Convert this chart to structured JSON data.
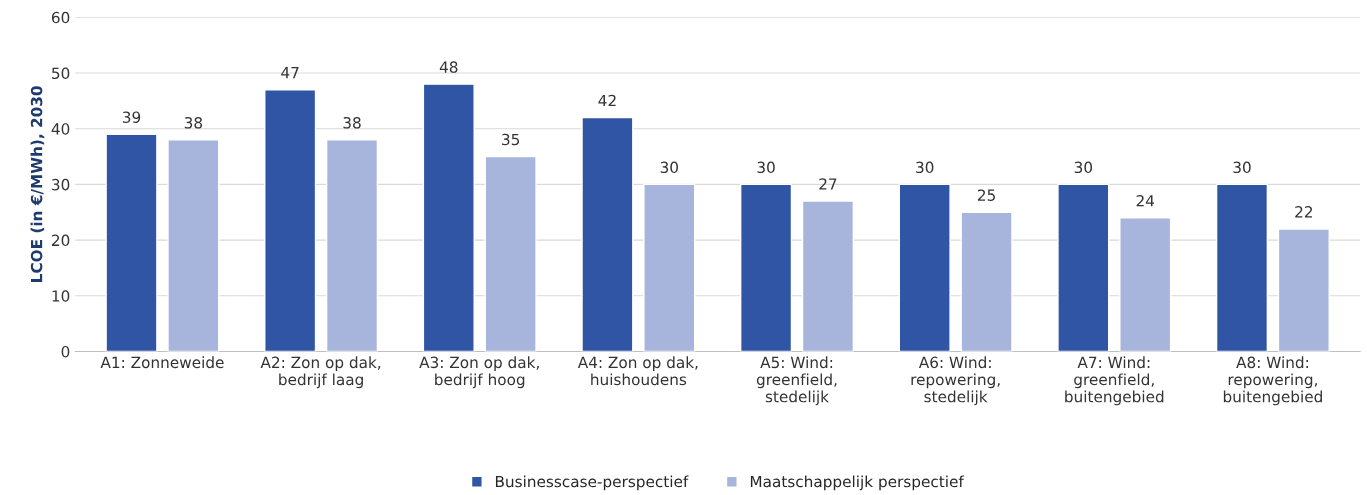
{
  "chart_data": {
    "type": "bar",
    "ylabel": "LCOE (in €/MWh), 2030",
    "categories": [
      "A1: Zonneweide",
      "A2: Zon op dak,\nbedrijf laag",
      "A3: Zon op dak,\nbedrijf hoog",
      "A4: Zon op dak,\nhuishoudens",
      "A5: Wind:\ngreenfield,\nstedelijk",
      "A6: Wind:\nrepowering,\nstedelijk",
      "A7: Wind:\ngreenfield,\nbuitengebied",
      "A8: Wind:\nrepowering,\nbuitengebied"
    ],
    "series": [
      {
        "name": "Businesscase-perspectief",
        "color": "#2f55a4",
        "values": [
          39,
          47,
          48,
          42,
          30,
          30,
          30,
          30
        ]
      },
      {
        "name": "Maatschappelijk perspectief",
        "color": "#a7b4dc",
        "values": [
          38,
          38,
          35,
          30,
          27,
          25,
          24,
          22
        ]
      }
    ],
    "ylim": [
      0,
      60
    ],
    "yticks": [
      0,
      10,
      20,
      30,
      40,
      50,
      60
    ],
    "grid": "y",
    "legend": "bottom",
    "data_labels": true
  }
}
